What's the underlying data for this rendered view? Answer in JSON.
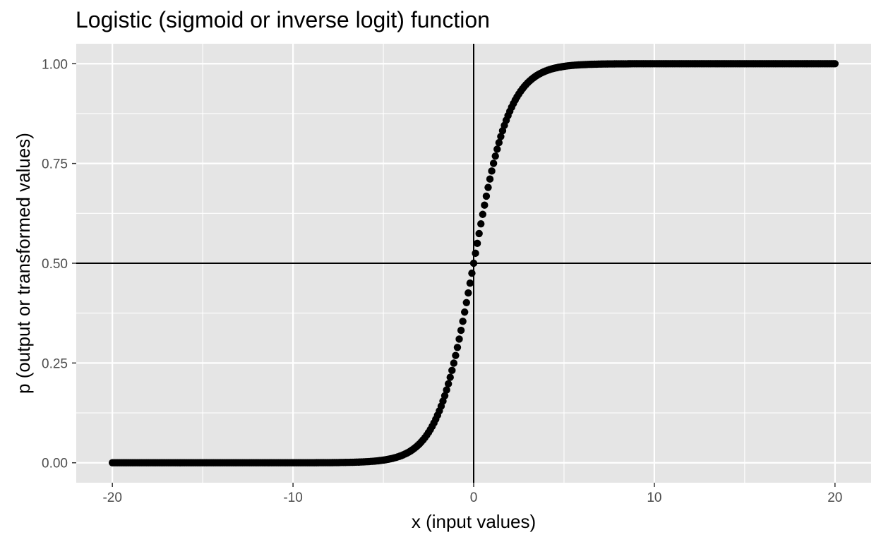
{
  "chart_data": {
    "type": "scatter",
    "title": "Logistic (sigmoid or inverse logit) function",
    "xlabel": "x (input values)",
    "ylabel": "p (output or transformed values)",
    "function": "logistic",
    "x_range": [
      -20,
      20
    ],
    "x_step": 0.1,
    "xlim": [
      -22,
      22
    ],
    "ylim": [
      -0.05,
      1.05
    ],
    "xticks": [
      -20,
      -10,
      0,
      10,
      20
    ],
    "xtick_labels": [
      "-20",
      "-10",
      "0",
      "10",
      "20"
    ],
    "yticks": [
      0,
      0.25,
      0.5,
      0.75,
      1
    ],
    "ytick_labels": [
      "0.00",
      "0.25",
      "0.50",
      "0.75",
      "1.00"
    ],
    "reference_lines": {
      "vertical_x": 0,
      "horizontal_y": 0.5
    },
    "grid": true,
    "legend": "none",
    "colors": {
      "panel_background": "#e5e5e5",
      "grid": "#ffffff",
      "points": "#000000",
      "reference_lines": "#000000"
    }
  }
}
